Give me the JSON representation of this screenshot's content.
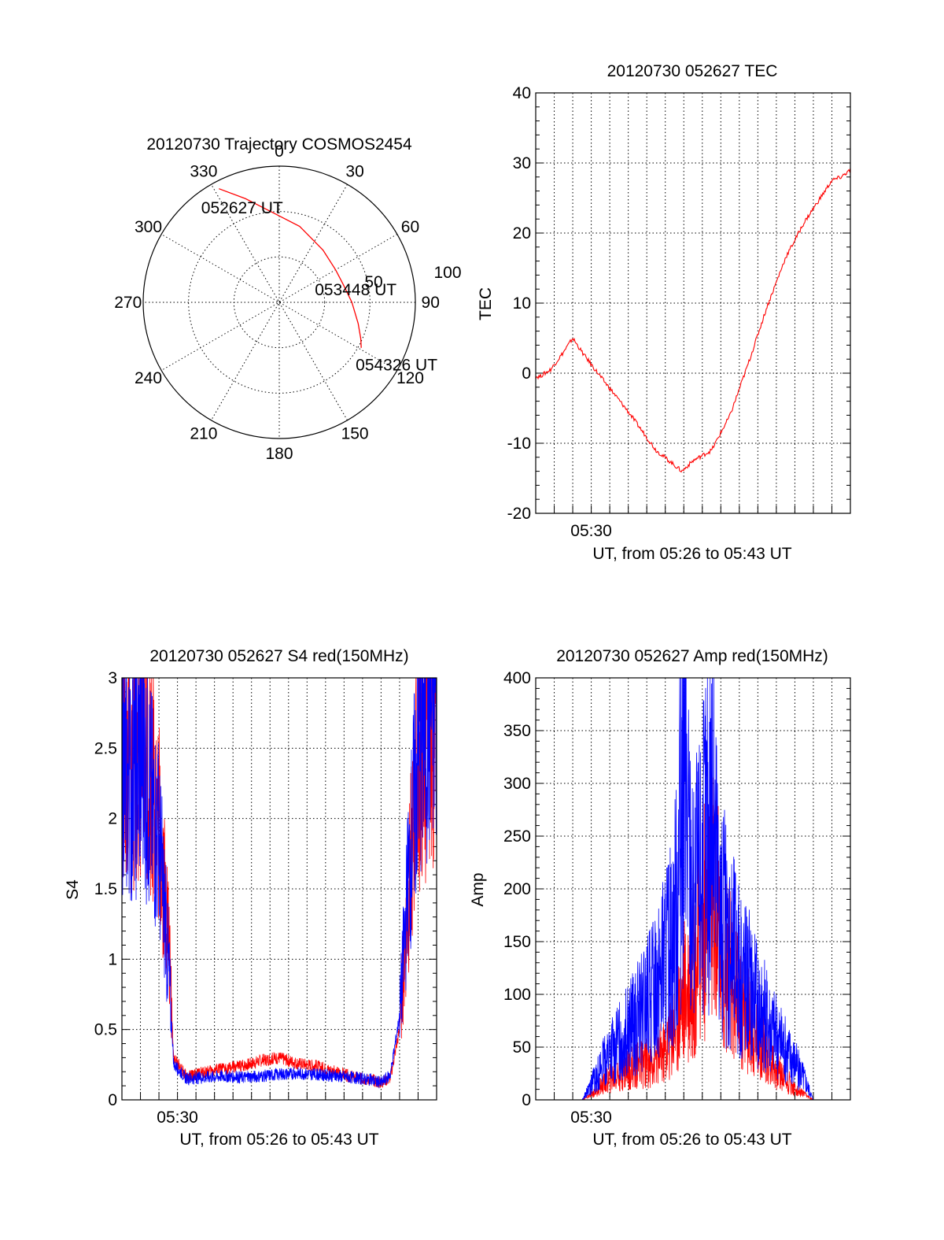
{
  "chart_data": [
    {
      "type": "polar",
      "title": "20120730 Trajectory COSMOS2454",
      "azimuth_labels": [
        "0",
        "30",
        "60",
        "90",
        "120",
        "150",
        "180",
        "210",
        "240",
        "270",
        "300",
        "330"
      ],
      "ring_labels": [
        "50",
        "100"
      ],
      "r_range": [
        0,
        90
      ],
      "grid": true,
      "series": [
        {
          "color": "#ff0000",
          "points": [
            {
              "az": 332,
              "r": 85
            },
            {
              "az": 342,
              "r": 72
            },
            {
              "az": 355,
              "r": 60
            },
            {
              "az": 15,
              "r": 52
            },
            {
              "az": 40,
              "r": 45
            },
            {
              "az": 60,
              "r": 43
            },
            {
              "az": 75,
              "r": 44
            },
            {
              "az": 90,
              "r": 48
            },
            {
              "az": 105,
              "r": 54
            },
            {
              "az": 114,
              "r": 59
            },
            {
              "az": 119,
              "r": 62
            }
          ]
        }
      ],
      "annotations": [
        {
          "text": "052627 UT",
          "az": 330,
          "r": 72
        },
        {
          "text": "053448 UT",
          "az": 78,
          "r": 40
        },
        {
          "text": "054326 UT",
          "az": 122,
          "r": 78
        }
      ]
    },
    {
      "type": "line",
      "title": "20120730 052627 TEC",
      "ylabel": "TEC",
      "xlabel": "UT, from 05:26 to 05:43 UT",
      "x_unit": "minutes after 05:26 UT",
      "xlim": [
        0,
        17
      ],
      "ylim": [
        -20,
        40
      ],
      "yticks": [
        -20,
        -10,
        0,
        10,
        20,
        30,
        40
      ],
      "xtick_labels": [
        {
          "x": 3,
          "label": "05:30"
        }
      ],
      "grid": true,
      "series": [
        {
          "color": "#ff0000",
          "x": [
            0.2,
            0.8,
            1.5,
            2.0,
            2.5,
            3.5,
            5.0,
            6.5,
            7.9,
            8.5,
            9.5,
            10.5,
            11.5,
            12.5,
            13.5,
            14.5,
            15.5,
            16.0,
            16.5,
            17.0
          ],
          "y": [
            -0.5,
            0.5,
            3.0,
            5.0,
            3.0,
            -0.5,
            -5.5,
            -11.0,
            -14.0,
            -12.5,
            -11.0,
            -6.0,
            1.5,
            9.5,
            16.5,
            21.5,
            25.5,
            27.5,
            28.0,
            29.0
          ]
        }
      ]
    },
    {
      "type": "line",
      "title": "20120730 052627 S4 red(150MHz)",
      "ylabel": "S4",
      "xlabel": "UT, from 05:26 to 05:43 UT",
      "x_unit": "minutes after 05:26 UT",
      "xlim": [
        0,
        17
      ],
      "ylim": [
        0,
        3
      ],
      "yticks": [
        0,
        0.5,
        1,
        1.5,
        2,
        2.5,
        3
      ],
      "xtick_labels": [
        {
          "x": 3,
          "label": "05:30"
        }
      ],
      "grid": true,
      "series": [
        {
          "color": "#ff0000",
          "x": [
            0.0,
            0.5,
            1.0,
            1.5,
            2.0,
            2.5,
            2.8,
            3.5,
            4.5,
            5.5,
            6.5,
            7.5,
            8.5,
            9.5,
            10.5,
            11.5,
            12.5,
            13.5,
            14.0,
            14.5,
            15.0,
            15.5,
            16.0,
            16.5,
            17.0
          ],
          "y": [
            2.5,
            2.3,
            2.6,
            2.4,
            2.0,
            1.2,
            0.3,
            0.16,
            0.2,
            0.22,
            0.24,
            0.28,
            0.3,
            0.26,
            0.24,
            0.2,
            0.16,
            0.14,
            0.12,
            0.16,
            0.5,
            1.5,
            2.4,
            2.6,
            2.8
          ]
        },
        {
          "color": "#0000ff",
          "x": [
            0.0,
            0.5,
            1.0,
            1.5,
            2.0,
            2.5,
            2.8,
            3.5,
            4.5,
            5.5,
            6.5,
            7.5,
            8.5,
            9.5,
            10.5,
            11.5,
            12.5,
            13.5,
            14.0,
            14.5,
            15.0,
            15.5,
            16.0,
            16.5,
            17.0
          ],
          "y": [
            2.4,
            2.2,
            2.5,
            2.2,
            1.8,
            1.0,
            0.25,
            0.15,
            0.16,
            0.17,
            0.16,
            0.17,
            0.18,
            0.19,
            0.18,
            0.17,
            0.16,
            0.14,
            0.12,
            0.18,
            0.6,
            1.6,
            2.5,
            2.8,
            2.9
          ]
        }
      ]
    },
    {
      "type": "line",
      "title": "20120730 052627 Amp red(150MHz)",
      "ylabel": "Amp",
      "xlabel": "UT, from 05:26 to 05:43 UT",
      "x_unit": "minutes after 05:26 UT",
      "xlim": [
        0,
        17
      ],
      "ylim": [
        0,
        400
      ],
      "yticks": [
        0,
        50,
        100,
        150,
        200,
        250,
        300,
        350,
        400
      ],
      "xtick_labels": [
        {
          "x": 3,
          "label": "05:30"
        }
      ],
      "grid": true,
      "series": [
        {
          "color": "#ff0000",
          "x": [
            0,
            2.5,
            3.0,
            4.0,
            5.0,
            6.0,
            7.0,
            7.5,
            8.0,
            8.5,
            9.0,
            9.5,
            10.0,
            11.0,
            12.0,
            13.0,
            14.0,
            14.5,
            15.0,
            17.0
          ],
          "y": [
            0,
            0,
            5,
            20,
            30,
            35,
            45,
            70,
            100,
            120,
            160,
            200,
            150,
            90,
            60,
            30,
            10,
            5,
            0,
            0
          ]
        },
        {
          "color": "#0000ff",
          "x": [
            0,
            2.5,
            3.0,
            3.5,
            4.0,
            5.0,
            6.0,
            7.0,
            7.5,
            8.0,
            8.5,
            9.0,
            9.5,
            10.0,
            11.0,
            12.0,
            13.0,
            14.0,
            14.5,
            15.0,
            17.0
          ],
          "y": [
            0,
            0,
            15,
            30,
            45,
            65,
            90,
            130,
            160,
            300,
            180,
            220,
            280,
            170,
            130,
            90,
            60,
            35,
            20,
            0,
            0
          ]
        }
      ]
    }
  ]
}
